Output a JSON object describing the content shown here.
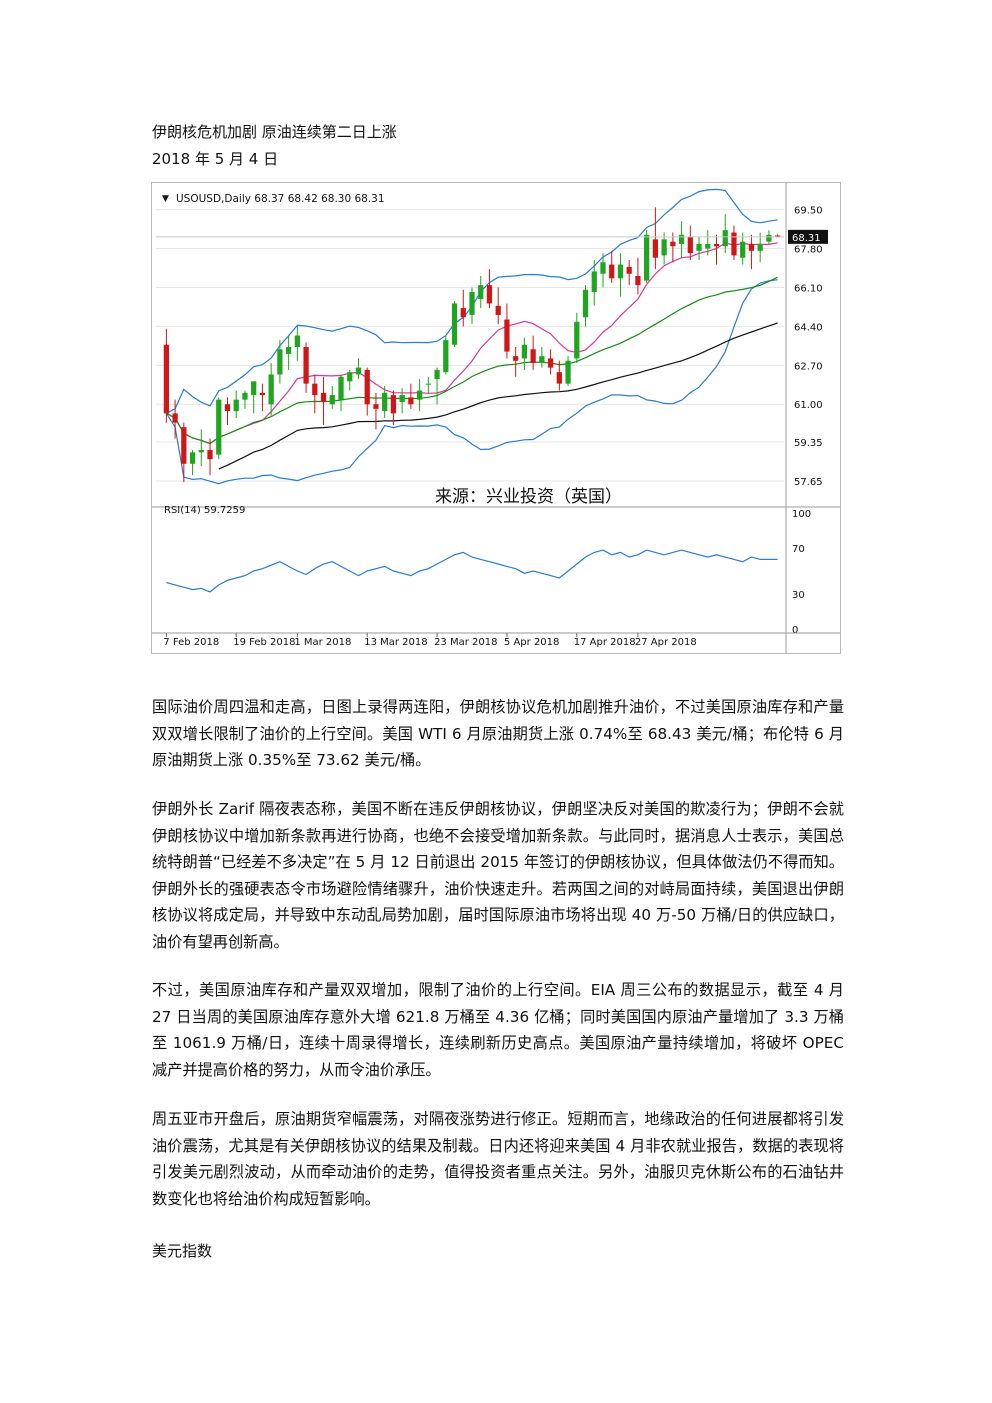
{
  "article": {
    "title": "伊朗核危机加剧  原油连续第二日上涨",
    "date": "2018 年 5 月 4 日",
    "paragraphs": [
      "国际油价周四温和走高，日图上录得两连阳，伊朗核协议危机加剧推升油价，不过美国原油库存和产量双双增长限制了油价的上行空间。美国 WTI 6 月原油期货上涨 0.74%至 68.43 美元/桶；布伦特 6 月原油期货上涨 0.35%至 73.62 美元/桶。",
      "伊朗外长 Zarif 隔夜表态称，美国不断在违反伊朗核协议，伊朗坚决反对美国的欺凌行为；伊朗不会就伊朗核协议中增加新条款再进行协商，也绝不会接受增加新条款。与此同时，据消息人士表示，美国总统特朗普“已经差不多决定”在 5 月 12 日前退出 2015 年签订的伊朗核协议，但具体做法仍不得而知。伊朗外长的强硬表态令市场避险情绪骤升，油价快速走升。若两国之间的对峙局面持续，美国退出伊朗核协议将成定局，并导致中东动乱局势加剧，届时国际原油市场将出现 40 万-50 万桶/日的供应缺口，油价有望再创新高。",
      "不过，美国原油库存和产量双双增加，限制了油价的上行空间。EIA 周三公布的数据显示，截至 4 月 27 日当周的美国原油库存意外大增 621.8 万桶至 4.36 亿桶；同时美国国内原油产量增加了 3.3 万桶至 1061.9 万桶/日，连续十周录得增长，连续刷新历史高点。美国原油产量持续增加，将破坏 OPEC 减产并提高价格的努力，从而令油价承压。",
      "周五亚市开盘后，原油期货窄幅震荡，对隔夜涨势进行修正。短期而言，地缘政治的任何进展都将引发油价震荡，尤其是有关伊朗核协议的结果及制裁。日内还将迎来美国 4 月非农就业报告，数据的表现将引发美元剧烈波动，从而牵动油价的走势，值得投资者重点关注。另外，油服贝克休斯公布的石油钻井数变化也将给油价构成短暂影响。"
    ],
    "next_section": "美元指数"
  },
  "chart_data": {
    "type": "candlestick",
    "symbol_header": "USOUSD,Daily  68.37 68.42 68.30 68.31",
    "header_icon": "triangle-down-icon",
    "last_price_label": "68.31",
    "watermark": "来源：兴业投资（英国）",
    "price_axis_ticks": [
      "69.50",
      "67.80",
      "66.10",
      "64.40",
      "62.70",
      "61.00",
      "59.35",
      "57.65"
    ],
    "price_range": [
      56.6,
      70.4
    ],
    "x_tick_labels": [
      "7 Feb 2018",
      "19 Feb 2018",
      "1 Mar 2018",
      "13 Mar 2018",
      "23 Mar 2018",
      "5 Apr 2018",
      "17 Apr 2018",
      "27 Apr 2018"
    ],
    "x_tick_index": [
      0,
      8,
      15,
      23,
      31,
      39,
      47,
      54
    ],
    "ohlc": [
      [
        63.6,
        64.3,
        60.2,
        60.6
      ],
      [
        60.6,
        61.2,
        59.5,
        60.2
      ],
      [
        60.0,
        60.2,
        57.6,
        58.4
      ],
      [
        58.4,
        59.0,
        57.9,
        58.9
      ],
      [
        58.9,
        59.9,
        58.3,
        59.0
      ],
      [
        59.0,
        59.5,
        57.9,
        58.6
      ],
      [
        58.8,
        61.3,
        58.6,
        61.2
      ],
      [
        61.0,
        61.3,
        60.1,
        60.7
      ],
      [
        60.7,
        61.6,
        60.4,
        61.2
      ],
      [
        61.2,
        61.6,
        60.8,
        61.5
      ],
      [
        61.4,
        62.0,
        60.6,
        62.0
      ],
      [
        61.5,
        61.9,
        60.7,
        61.4
      ],
      [
        61.0,
        62.8,
        60.5,
        62.3
      ],
      [
        62.3,
        63.8,
        61.9,
        63.4
      ],
      [
        63.2,
        64.0,
        62.5,
        63.5
      ],
      [
        63.5,
        64.4,
        62.9,
        64.0
      ],
      [
        63.5,
        63.7,
        61.5,
        61.9
      ],
      [
        61.9,
        62.3,
        60.6,
        61.4
      ],
      [
        61.5,
        62.2,
        60.1,
        61.1
      ],
      [
        61.0,
        61.8,
        60.8,
        61.4
      ],
      [
        61.2,
        62.3,
        60.7,
        62.2
      ],
      [
        62.0,
        62.5,
        61.6,
        62.4
      ],
      [
        62.3,
        63.0,
        62.1,
        62.6
      ],
      [
        62.5,
        62.6,
        60.5,
        61.0
      ],
      [
        61.0,
        61.5,
        59.9,
        60.8
      ],
      [
        60.7,
        61.8,
        60.4,
        61.5
      ],
      [
        61.4,
        61.6,
        60.1,
        60.6
      ],
      [
        61.1,
        61.7,
        60.6,
        61.4
      ],
      [
        61.3,
        61.9,
        60.8,
        61.0
      ],
      [
        61.2,
        62.1,
        60.7,
        61.6
      ],
      [
        61.9,
        62.2,
        61.5,
        61.9
      ],
      [
        62.1,
        62.6,
        61.0,
        62.5
      ],
      [
        62.4,
        64.0,
        62.3,
        63.8
      ],
      [
        63.6,
        65.5,
        63.5,
        65.4
      ],
      [
        65.2,
        66.0,
        64.4,
        64.8
      ],
      [
        64.9,
        66.1,
        64.5,
        65.9
      ],
      [
        65.6,
        66.6,
        65.2,
        66.2
      ],
      [
        66.2,
        66.9,
        65.2,
        65.4
      ],
      [
        65.3,
        66.1,
        64.5,
        64.9
      ],
      [
        64.7,
        65.4,
        63.0,
        63.3
      ],
      [
        63.1,
        63.5,
        62.2,
        62.9
      ],
      [
        63.0,
        63.9,
        62.5,
        63.6
      ],
      [
        63.4,
        64.0,
        62.5,
        62.8
      ],
      [
        62.8,
        63.5,
        62.6,
        63.1
      ],
      [
        63.0,
        63.4,
        62.3,
        62.6
      ],
      [
        62.4,
        62.9,
        61.6,
        61.9
      ],
      [
        61.9,
        63.1,
        61.8,
        62.9
      ],
      [
        63.0,
        65.0,
        62.8,
        64.6
      ],
      [
        64.8,
        66.2,
        64.4,
        66.0
      ],
      [
        65.9,
        67.3,
        65.3,
        66.8
      ],
      [
        66.7,
        67.6,
        66.1,
        67.2
      ],
      [
        67.1,
        67.7,
        66.3,
        66.5
      ],
      [
        66.5,
        67.6,
        65.7,
        67.1
      ],
      [
        67.0,
        67.3,
        66.2,
        66.7
      ],
      [
        66.6,
        67.4,
        65.8,
        66.2
      ],
      [
        66.4,
        68.6,
        66.3,
        68.4
      ],
      [
        68.2,
        69.6,
        66.9,
        67.4
      ],
      [
        67.5,
        68.5,
        67.1,
        68.2
      ],
      [
        68.1,
        68.5,
        67.2,
        67.9
      ],
      [
        68.0,
        69.0,
        67.4,
        68.4
      ],
      [
        68.3,
        68.8,
        67.3,
        67.6
      ],
      [
        67.7,
        68.3,
        67.3,
        68.0
      ],
      [
        67.8,
        68.6,
        67.5,
        68.0
      ],
      [
        68.0,
        68.4,
        67.1,
        67.9
      ],
      [
        67.9,
        69.3,
        67.6,
        68.6
      ],
      [
        68.5,
        68.8,
        67.3,
        67.5
      ],
      [
        67.4,
        68.5,
        67.1,
        68.1
      ],
      [
        68.0,
        68.4,
        66.9,
        67.7
      ],
      [
        67.7,
        68.5,
        67.2,
        68.0
      ],
      [
        68.1,
        68.6,
        68.0,
        68.4
      ],
      [
        68.37,
        68.42,
        68.3,
        68.31
      ]
    ],
    "rsi_label": "RSI(14) 59.7259",
    "rsi_axis_ticks": [
      "100",
      "70",
      "30",
      "0"
    ],
    "rsi_range": [
      0,
      100
    ],
    "rsi": [
      40,
      38,
      36,
      34,
      35,
      32,
      38,
      42,
      44,
      46,
      50,
      52,
      55,
      58,
      54,
      50,
      47,
      52,
      56,
      58,
      54,
      50,
      46,
      50,
      52,
      54,
      50,
      48,
      46,
      50,
      52,
      56,
      60,
      64,
      66,
      62,
      60,
      58,
      56,
      54,
      52,
      48,
      50,
      48,
      46,
      44,
      50,
      56,
      62,
      66,
      68,
      64,
      66,
      62,
      64,
      68,
      66,
      64,
      66,
      68,
      66,
      64,
      62,
      64,
      62,
      60,
      58,
      62,
      60,
      60,
      60
    ]
  }
}
